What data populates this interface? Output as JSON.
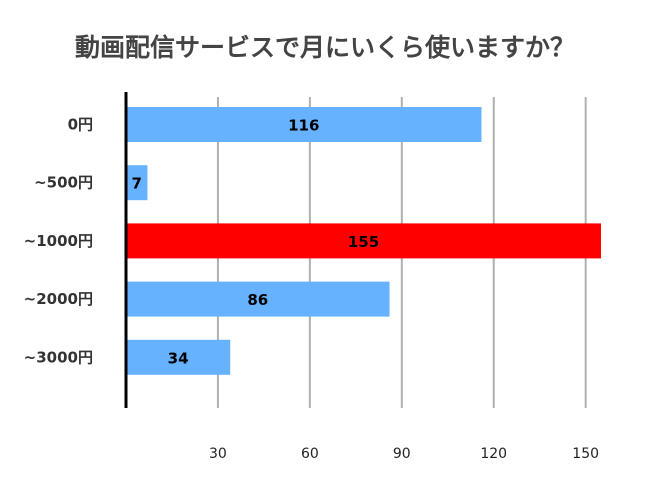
{
  "chart_data": {
    "type": "bar",
    "orientation": "horizontal",
    "title": "動画配信サービスで月にいくら使いますか？",
    "categories": [
      "0円",
      "~500円",
      "~1000円",
      "~2000円",
      "~3000円"
    ],
    "values": [
      116,
      7,
      155,
      86,
      34
    ],
    "bar_colors": [
      "#66b2ff",
      "#66b2ff",
      "#ff0000",
      "#66b2ff",
      "#66b2ff"
    ],
    "x_ticks": [
      30,
      60,
      90,
      120,
      150
    ],
    "xlim": [
      0,
      155
    ],
    "xlabel": "",
    "ylabel": "",
    "grid": "vertical",
    "legend": "none"
  },
  "colors": {
    "default_bar": "#66b2ff",
    "highlight_bar": "#ff0000",
    "gridline": "#b0b0b0",
    "axis": "#000000",
    "title": "#444444"
  }
}
